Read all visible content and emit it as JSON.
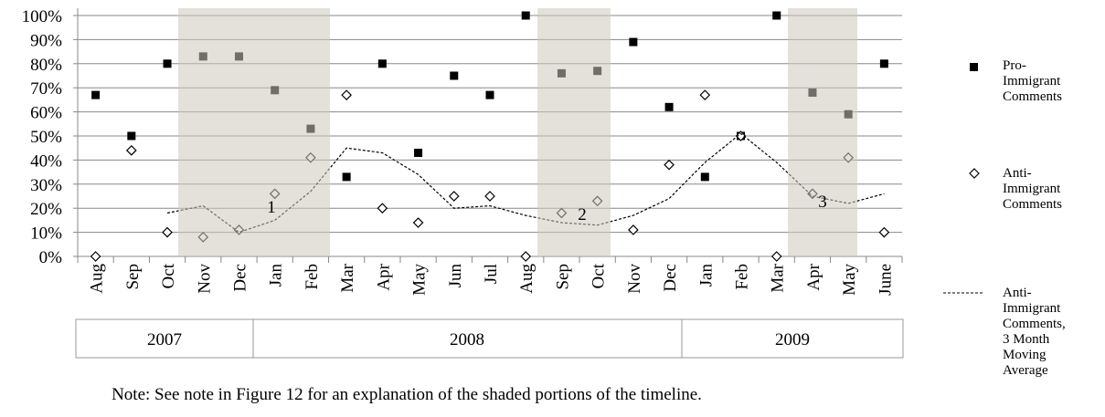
{
  "chart_data": {
    "type": "line",
    "categories": [
      "Aug",
      "Sep",
      "Oct",
      "Nov",
      "Dec",
      "Jan",
      "Feb",
      "Mar",
      "Apr",
      "May",
      "Jun",
      "Jul",
      "Aug",
      "Sep",
      "Oct",
      "Nov",
      "Dec",
      "Jan",
      "Feb",
      "Mar",
      "Apr",
      "May",
      "June"
    ],
    "years": [
      "2007",
      "2008",
      "2009"
    ],
    "series": [
      {
        "name": "Pro-Immigrant Comments",
        "color": "#000000",
        "marker": "square",
        "values": [
          67,
          50,
          80,
          83,
          83,
          69,
          53,
          33,
          80,
          43,
          75,
          67,
          100,
          76,
          77,
          89,
          62,
          33,
          50,
          100,
          68,
          59,
          80
        ]
      },
      {
        "name": "Anti-Immigrant Comments",
        "color": "#000000",
        "marker": "diamond",
        "values": [
          0,
          44,
          10,
          8,
          11,
          26,
          41,
          67,
          20,
          14,
          25,
          25,
          0,
          18,
          23,
          11,
          38,
          67,
          50,
          0,
          26,
          41,
          10
        ]
      },
      {
        "name": "Anti-Immigrant Comments, 3 Month Moving Average",
        "color": "#000000",
        "marker": "dashed-line",
        "values": [
          null,
          null,
          18,
          21,
          10,
          15,
          27,
          45,
          43,
          34,
          20,
          21,
          17,
          14,
          13,
          17,
          24,
          39,
          51,
          39,
          25,
          22,
          26
        ]
      }
    ],
    "annotations": [
      "1",
      "2",
      "3"
    ],
    "note": "Note: See note in Figure 12 for an explanation of the shaded portions of the timeline.",
    "ylim": [
      0,
      100
    ],
    "yticks": [
      {
        "value": 0,
        "label": "0%"
      },
      {
        "value": 10,
        "label": "10%"
      },
      {
        "value": 20,
        "label": "20%"
      },
      {
        "value": 30,
        "label": "30%"
      },
      {
        "value": 40,
        "label": "40%"
      },
      {
        "value": 50,
        "label": "50%"
      },
      {
        "value": 60,
        "label": "60%"
      },
      {
        "value": 70,
        "label": "70%"
      },
      {
        "value": 80,
        "label": "80%"
      },
      {
        "value": 90,
        "label": "90%"
      },
      {
        "value": 100,
        "label": "100%"
      }
    ],
    "grid": true
  }
}
